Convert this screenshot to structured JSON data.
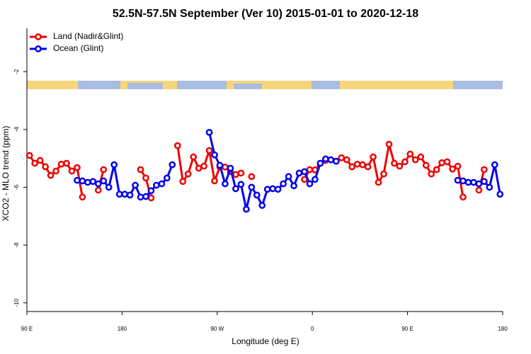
{
  "chart_data": {
    "type": "line",
    "title": "52.5N-57.5N September (Ver 10)   2015-01-01 to 2020-12-18",
    "xlabel": "Longitude (deg E)",
    "ylabel": "XCO2 - MLO trend (ppm)",
    "xlim": [
      90,
      540
    ],
    "ylim": [
      -10.3,
      -0.5
    ],
    "xticks": [
      {
        "value": 90,
        "label": "90 E"
      },
      180,
      {
        "value": 270,
        "label": "90 W"
      },
      {
        "value": 360,
        "label": "0"
      },
      {
        "value": 450,
        "label": "90 E"
      },
      {
        "value": 540,
        "label": "180"
      }
    ],
    "yticks": [
      -2,
      -4,
      -6,
      -8,
      -10
    ],
    "legend": "top-left",
    "x": [
      92.5,
      97.5,
      102.5,
      107.5,
      112.5,
      117.5,
      122.5,
      127.5,
      132.5,
      137.5,
      142.5,
      147.5,
      152.5,
      157.5,
      162.5,
      167.5,
      172.5,
      177.5,
      182.5,
      187.5,
      192.5,
      197.5,
      202.5,
      207.5,
      212.5,
      217.5,
      222.5,
      227.5,
      232.5,
      237.5,
      242.5,
      247.5,
      252.5,
      257.5,
      262.5,
      267.5,
      272.5,
      277.5,
      282.5,
      287.5,
      292.5,
      297.5,
      302.5,
      307.5,
      312.5,
      317.5,
      322.5,
      327.5,
      332.5,
      337.5,
      342.5,
      347.5,
      352.5,
      357.5,
      362.5,
      367.5,
      372.5,
      377.5,
      382.5,
      387.5,
      392.5,
      397.5,
      402.5,
      407.5,
      412.5,
      417.5,
      422.5,
      427.5,
      432.5,
      437.5,
      442.5,
      447.5,
      452.5,
      457.5,
      462.5,
      467.5,
      472.5,
      477.5,
      482.5,
      487.5,
      492.5,
      497.5,
      502.5,
      507.5,
      512.5,
      517.5,
      522.5,
      527.5,
      532.5,
      537.5
    ],
    "series": [
      {
        "name": "Land (Nadir&Glint)",
        "color": "#ee0000",
        "values": [
          -4.9,
          -5.17,
          -5.07,
          -5.29,
          -5.59,
          -5.44,
          -5.2,
          -5.17,
          -5.44,
          -5.32,
          -6.34,
          null,
          null,
          -6.1,
          -5.39,
          null,
          null,
          null,
          null,
          null,
          null,
          -5.39,
          -5.68,
          -6.37,
          null,
          null,
          null,
          null,
          -4.56,
          -5.8,
          -5.54,
          -4.95,
          -5.34,
          -5.27,
          -4.73,
          -5.78,
          -5.3,
          -5.3,
          -5.46,
          -5.56,
          -5.51,
          null,
          -5.63,
          null,
          null,
          null,
          null,
          null,
          null,
          null,
          null,
          null,
          -5.73,
          -5.39,
          -5.4,
          -5.17,
          -5.07,
          -5.05,
          -5.1,
          -4.98,
          -5.05,
          -5.29,
          -5.2,
          -5.22,
          -5.29,
          -4.95,
          -5.83,
          -5.54,
          -4.51,
          -5.17,
          -5.27,
          -5.12,
          -4.85,
          -5.05,
          -4.95,
          -5.24,
          -5.54,
          -5.39,
          -5.15,
          -5.12,
          -5.37,
          -5.27,
          -6.34,
          null,
          null,
          -6.1,
          -5.39,
          null,
          null,
          null
        ]
      },
      {
        "name": "Ocean (Glint)",
        "color": "#0000ee",
        "values": [
          null,
          null,
          null,
          null,
          null,
          null,
          null,
          null,
          null,
          -5.76,
          -5.78,
          -5.83,
          -5.8,
          -5.88,
          -5.78,
          -6.0,
          -5.22,
          -6.24,
          -6.24,
          -6.27,
          -5.93,
          -6.34,
          -6.32,
          -6.12,
          -5.93,
          -5.88,
          -5.68,
          -5.22,
          null,
          null,
          null,
          null,
          null,
          null,
          -4.1,
          -4.88,
          -5.24,
          -5.88,
          -5.34,
          -6.05,
          -5.9,
          -6.76,
          -6.0,
          -6.27,
          -6.63,
          -6.07,
          -6.05,
          -6.07,
          -5.88,
          -5.63,
          -5.95,
          -5.51,
          -5.46,
          -5.88,
          -5.73,
          -5.17,
          -5.02,
          -5.05,
          -5.1,
          null,
          null,
          null,
          null,
          null,
          null,
          null,
          null,
          null,
          null,
          null,
          null,
          null,
          null,
          null,
          null,
          null,
          null,
          null,
          null,
          null,
          null,
          -5.76,
          -5.78,
          -5.83,
          -5.83,
          -5.88,
          -5.8,
          -6.0,
          -5.22,
          -6.24
        ]
      }
    ]
  }
}
